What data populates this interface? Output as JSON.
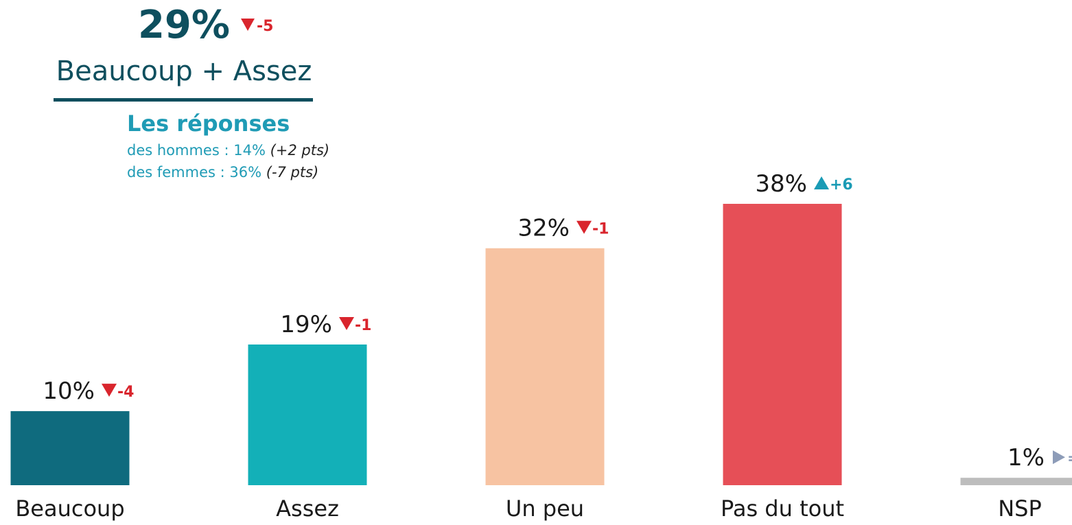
{
  "header": {
    "headline": "29%",
    "headline_change": "-5",
    "subtitle": "Beaucoup + Assez",
    "responses_title": "Les réponses",
    "men": "des hommes : 14%",
    "men_change": "(+2 pts)",
    "women": "des femmes : 36%",
    "women_change": "(-7 pts)"
  },
  "chart_data": {
    "type": "bar",
    "categories": [
      "Beaucoup",
      "Assez",
      "Un peu",
      "Pas du tout",
      "NSP"
    ],
    "values": [
      10,
      19,
      32,
      38,
      1
    ],
    "value_labels": [
      "10%",
      "19%",
      "32%",
      "38%",
      "1%"
    ],
    "colors": [
      "#0f6b7e",
      "#13b0b8",
      "#f7c3a2",
      "#e64f57",
      "#bdbdbd"
    ],
    "changes": [
      -4,
      -1,
      -1,
      6,
      0
    ],
    "change_labels": [
      "-4",
      "-1",
      "-1",
      "+6",
      "="
    ]
  }
}
